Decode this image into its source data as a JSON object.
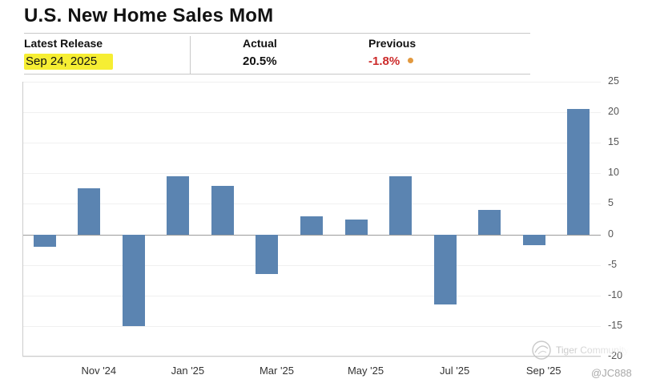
{
  "title": "U.S. New Home Sales MoM",
  "release": {
    "label": "Latest Release",
    "date": "Sep 24, 2025",
    "actual_label": "Actual",
    "actual_value": "20.5%",
    "previous_label": "Previous",
    "previous_value": "-1.8%"
  },
  "colors": {
    "highlight": "#f6ee33",
    "previous_value": "#cc2a2a",
    "indicator_dot": "#e2993f"
  },
  "watermark": {
    "brand": "Tiger Community",
    "handle": "@JC888"
  },
  "chart_data": {
    "type": "bar",
    "values": [
      -2,
      7.5,
      -15,
      9.5,
      8,
      -6.5,
      3,
      2.5,
      9.5,
      -11.5,
      4,
      -1.8,
      20.5
    ],
    "x_tick_labels": [
      "Nov '24",
      "Jan '25",
      "Mar '25",
      "May '25",
      "Jul '25",
      "Sep '25"
    ],
    "x_tick_bar_index": [
      1,
      3,
      5,
      7,
      9,
      11
    ],
    "y_ticks": [
      25,
      20,
      15,
      10,
      5,
      0,
      -5,
      -10,
      -15,
      -20
    ],
    "ylim": [
      -20,
      25
    ],
    "bar_color": "#5b84b1",
    "grid": true,
    "y_axis_side": "right",
    "legend": "none"
  }
}
